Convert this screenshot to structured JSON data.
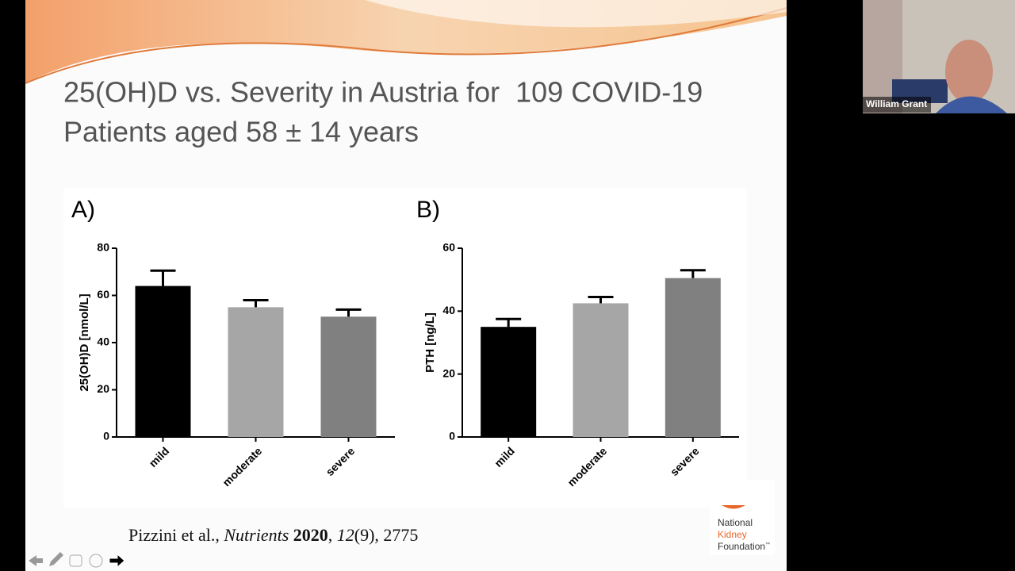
{
  "slide": {
    "title_lines": [
      "25(OH)D vs. Severity in Austria for  109 COVID-19",
      "Patients aged 58 ± 14 years"
    ],
    "citation": [
      "Pizzini et al., ",
      "Nutrients",
      " 2020",
      ", ",
      "12",
      "(9), 2775"
    ],
    "logo": [
      "National",
      "Kidney",
      "Foundation",
      "™"
    ]
  },
  "participant": {
    "name": "William Grant"
  },
  "chart_data": [
    {
      "type": "bar",
      "panel_label": "A)",
      "ylabel": "25(OH)D [nmol/L]",
      "categories": [
        "mild",
        "moderate",
        "severe"
      ],
      "values": [
        64,
        55,
        51
      ],
      "errors": [
        6.5,
        3,
        3
      ],
      "colors": [
        "#000000",
        "#a6a6a6",
        "#808080"
      ],
      "ylim": [
        0,
        80
      ],
      "yticks": [
        0,
        20,
        40,
        60,
        80
      ]
    },
    {
      "type": "bar",
      "panel_label": "B)",
      "ylabel": "PTH [ng/L]",
      "categories": [
        "mild",
        "moderate",
        "severe"
      ],
      "values": [
        35,
        42.5,
        50.5
      ],
      "errors": [
        2.5,
        2,
        2.5
      ],
      "colors": [
        "#000000",
        "#a6a6a6",
        "#808080"
      ],
      "ylim": [
        0,
        60
      ],
      "yticks": [
        0,
        20,
        40,
        60
      ]
    }
  ]
}
